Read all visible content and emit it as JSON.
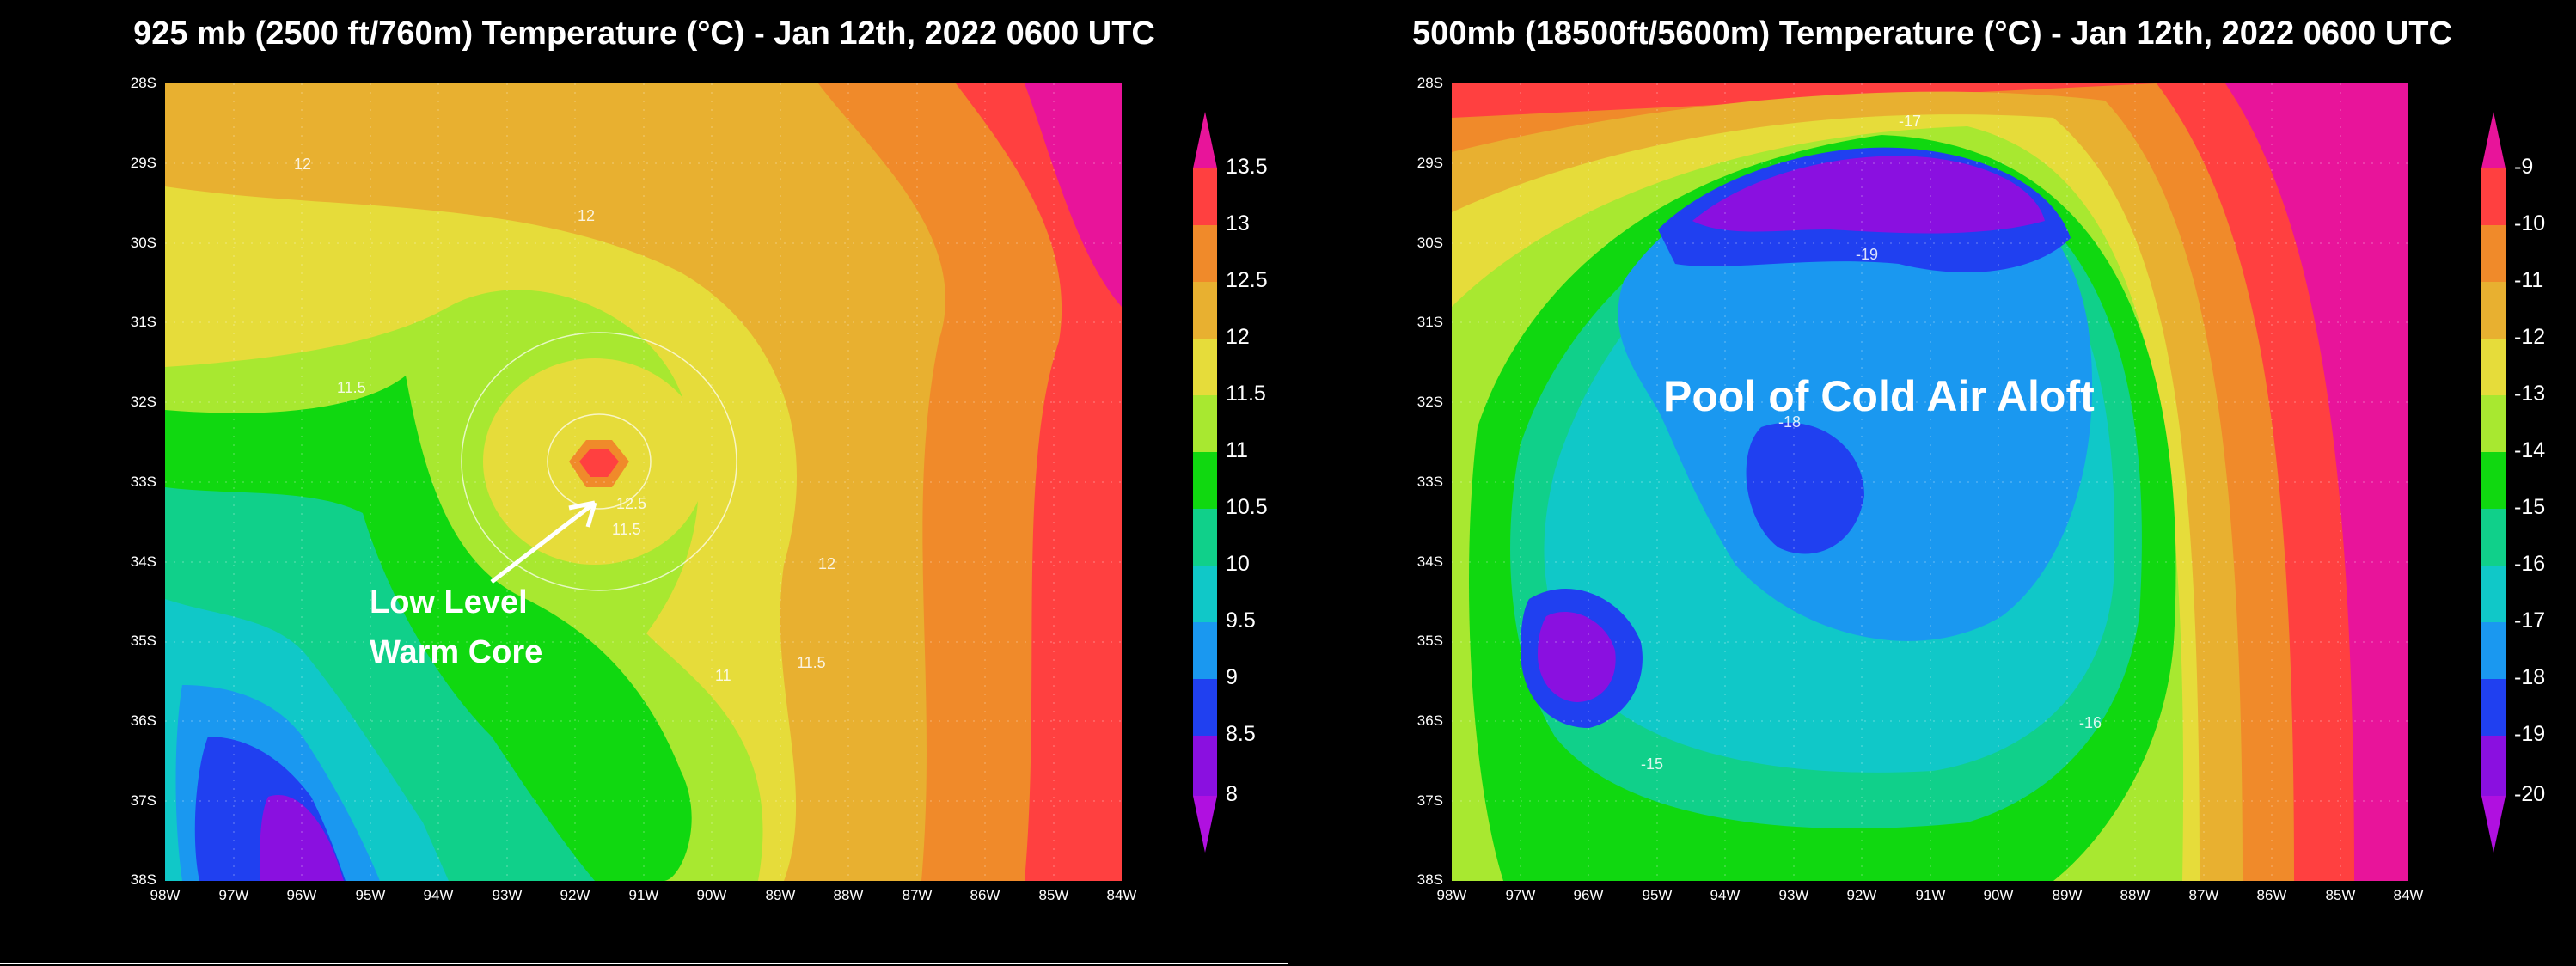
{
  "panels": [
    {
      "title": "925 mb (2500 ft/760m) Temperature (°C) - Jan 12th, 2022 0600 UTC",
      "lat_labels": [
        "28S",
        "29S",
        "30S",
        "31S",
        "32S",
        "33S",
        "34S",
        "35S",
        "36S",
        "37S",
        "38S"
      ],
      "lon_labels": [
        "98W",
        "97W",
        "96W",
        "95W",
        "94W",
        "93W",
        "92W",
        "91W",
        "90W",
        "89W",
        "88W",
        "87W",
        "86W",
        "85W",
        "84W"
      ],
      "colorbar_labels": [
        "13.5",
        "13",
        "12.5",
        "12",
        "11.5",
        "11",
        "10.5",
        "10",
        "9.5",
        "9",
        "8.5",
        "8"
      ],
      "colorbar_colors": [
        "#e8149a",
        "#ff4040",
        "#f08a2a",
        "#e8b030",
        "#e6dc3a",
        "#a8e830",
        "#10d810",
        "#10d08a",
        "#10c8c8",
        "#1a98f0",
        "#2040f0",
        "#8a10e0",
        "#b010e0"
      ],
      "contour_labels": [
        "12",
        "12",
        "11.5",
        "12.5",
        "11.5",
        "12",
        "11",
        "11.5"
      ],
      "annotation": "Low Level\nWarm Core",
      "annotation_line1": "Low Level",
      "annotation_line2": "Warm Core"
    },
    {
      "title": "500mb (18500ft/5600m) Temperature (°C) - Jan 12th, 2022 0600 UTC",
      "lat_labels": [
        "28S",
        "29S",
        "30S",
        "31S",
        "32S",
        "33S",
        "34S",
        "35S",
        "36S",
        "37S",
        "38S"
      ],
      "lon_labels": [
        "98W",
        "97W",
        "96W",
        "95W",
        "94W",
        "93W",
        "92W",
        "91W",
        "90W",
        "89W",
        "88W",
        "87W",
        "86W",
        "85W",
        "84W"
      ],
      "colorbar_labels": [
        "-9",
        "-10",
        "-11",
        "-12",
        "-13",
        "-14",
        "-15",
        "-16",
        "-17",
        "-18",
        "-19",
        "-20"
      ],
      "colorbar_colors": [
        "#e8149a",
        "#ff4040",
        "#f08a2a",
        "#e8b030",
        "#e6dc3a",
        "#a8e830",
        "#10d810",
        "#10d08a",
        "#10c8c8",
        "#1a98f0",
        "#2040f0",
        "#8a10e0",
        "#b010e0"
      ],
      "contour_labels": [
        "-17",
        "-19",
        "-18",
        "-16",
        "-15"
      ],
      "annotation": "Pool of Cold Air Aloft"
    }
  ]
}
